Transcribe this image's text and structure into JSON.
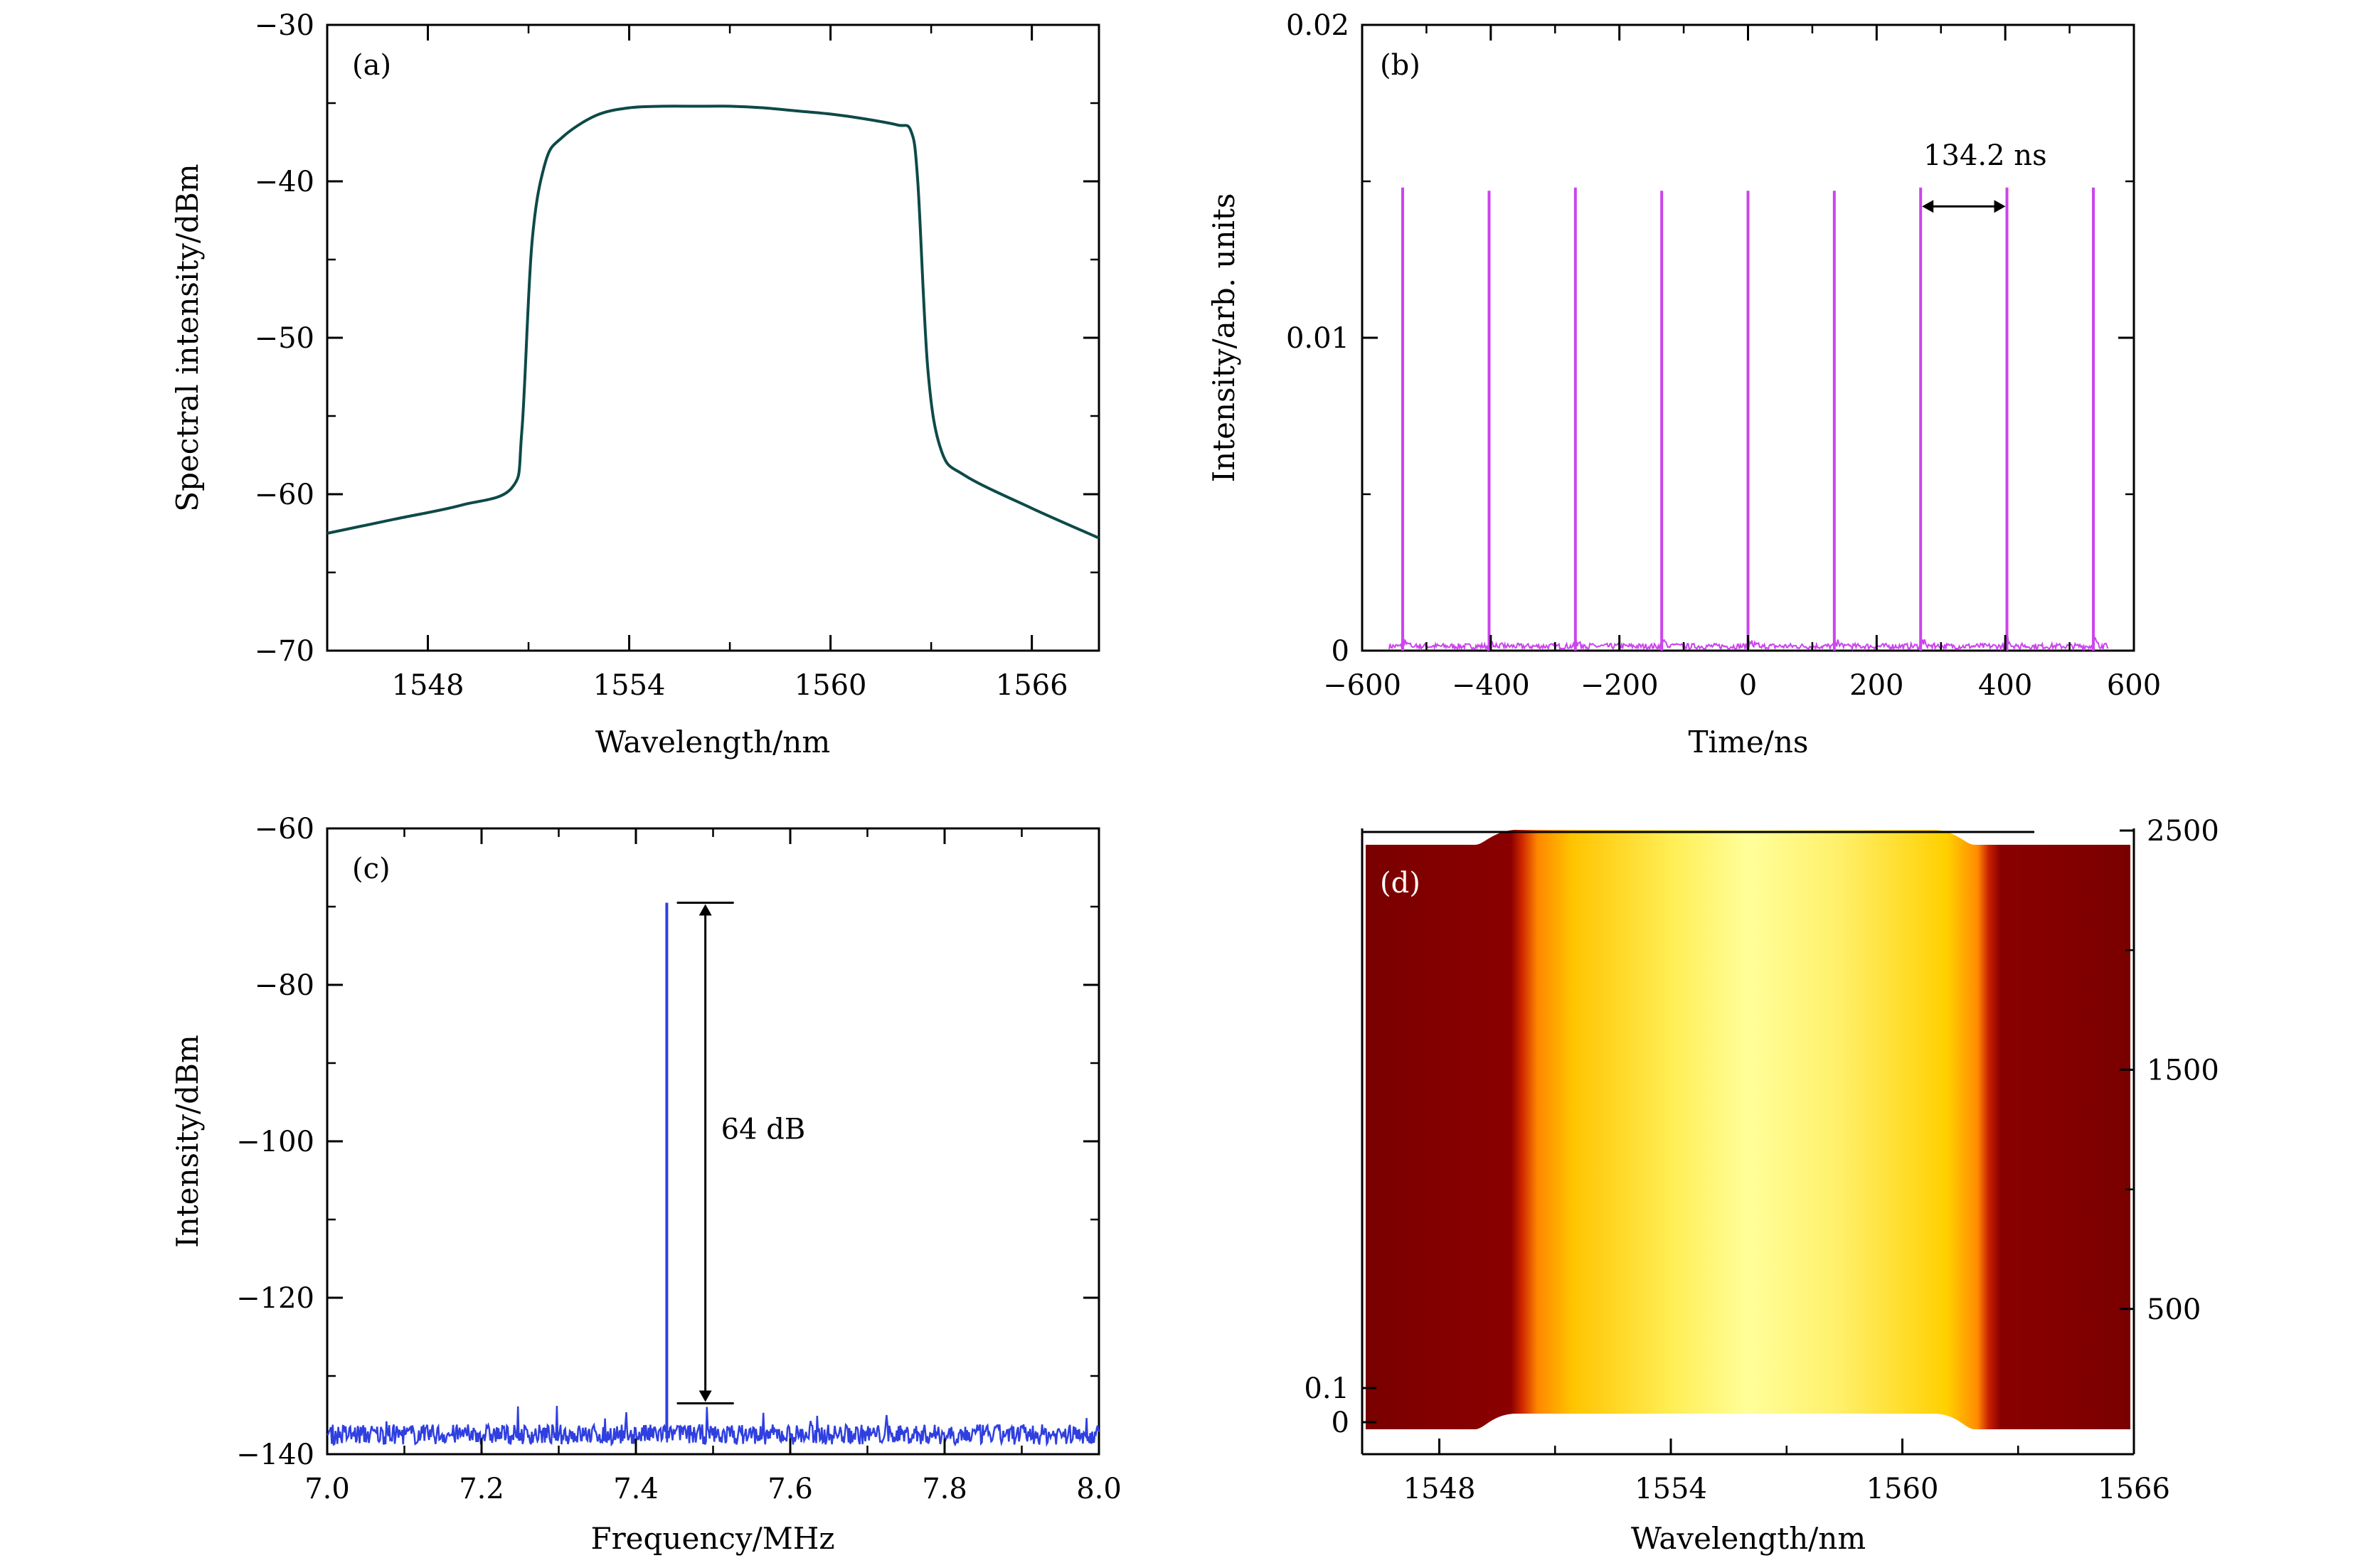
{
  "chart_data": [
    {
      "panel": "(a)",
      "type": "line",
      "xlabel": "Wavelength/nm",
      "ylabel": "Spectral intensity/dBm",
      "xlim": [
        1545,
        1568
      ],
      "ylim": [
        -70,
        -30
      ],
      "xticks": [
        "1548",
        "1554",
        "1560",
        "1566"
      ],
      "yticks": [
        "−30",
        "−40",
        "−50",
        "−60",
        "−70"
      ],
      "color": "#0d4a48",
      "series": [
        {
          "x": [
            1545,
            1547,
            1549,
            1550.5,
            1550.8,
            1551.1,
            1551.5,
            1552,
            1553,
            1554,
            1555,
            1556,
            1557,
            1558,
            1559,
            1560,
            1561,
            1562,
            1562.4,
            1562.6,
            1562.9,
            1563.3,
            1564,
            1566,
            1568
          ],
          "y": [
            -62.5,
            -61.6,
            -60.7,
            -59.6,
            -56.0,
            -44.0,
            -38.8,
            -37.2,
            -35.8,
            -35.3,
            -35.2,
            -35.2,
            -35.2,
            -35.3,
            -35.5,
            -35.7,
            -36.0,
            -36.4,
            -36.8,
            -40.0,
            -52.0,
            -57.2,
            -58.8,
            -60.9,
            -62.8
          ]
        }
      ]
    },
    {
      "panel": "(b)",
      "type": "line",
      "xlabel": "Time/ns",
      "ylabel": "Intensity/arb. units",
      "xlim": [
        -600,
        600
      ],
      "ylim": [
        0,
        0.02
      ],
      "xticks": [
        "−600",
        "−400",
        "−200",
        "0",
        "200",
        "400",
        "600"
      ],
      "yticks": [
        "0",
        "0.01",
        "0.02"
      ],
      "color": "#cc44ee",
      "pulse_times_ns": [
        -537,
        -402.6,
        -268.4,
        -134.2,
        0,
        134.2,
        268.4,
        402.6,
        537
      ],
      "pulse_heights": [
        0.0148,
        0.0147,
        0.0148,
        0.0147,
        0.0147,
        0.0147,
        0.0148,
        0.0148,
        0.0148
      ],
      "annotation": {
        "text": "134.2 ns",
        "from": 268.4,
        "to": 402.6,
        "y": 0.0142
      }
    },
    {
      "panel": "(c)",
      "type": "line",
      "xlabel": "Frequency/MHz",
      "ylabel": "Intensity/dBm",
      "xlim": [
        7.0,
        8.0
      ],
      "ylim": [
        -140,
        -60
      ],
      "xticks": [
        "7.0",
        "7.2",
        "7.4",
        "7.6",
        "7.8",
        "8.0"
      ],
      "yticks": [
        "−60",
        "−80",
        "−100",
        "−120",
        "−140"
      ],
      "color": "#2f3fe0",
      "noise_floor_dBm": -138,
      "peak": {
        "x": 7.44,
        "y": -69.5
      },
      "annotation": {
        "text": "64 dB",
        "top": -69.5,
        "bottom": -133.5,
        "x": 7.49
      }
    },
    {
      "panel": "(d)",
      "type": "heatmap",
      "xlabel": "Wavelength/nm",
      "xlim": [
        1546,
        1566
      ],
      "xticks": [
        "1548",
        "1554",
        "1560",
        "1566"
      ],
      "yticks_left": [
        "0.1",
        "0"
      ],
      "yticks_right": [
        "2500",
        "1500",
        "500"
      ],
      "band_edges_nm": [
        1549.2,
        1561.6
      ],
      "colors": {
        "low": "#8b0000",
        "edge": "#ff6a00",
        "mid": "#ffd400",
        "high": "#ffffa0"
      }
    }
  ]
}
